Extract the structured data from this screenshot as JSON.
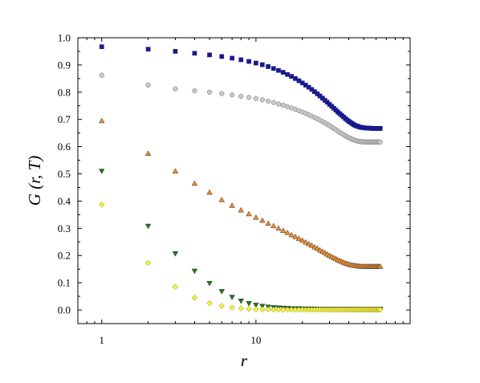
{
  "chart_data": {
    "type": "scatter",
    "title": "",
    "xlabel": "r",
    "ylabel": "G (r, T)",
    "x_scale": "log",
    "xlim": [
      0.7,
      100
    ],
    "ylim": [
      -0.05,
      1.0
    ],
    "grid": false,
    "legend": "none",
    "x_ticks": [
      {
        "value": 1,
        "label": "1"
      },
      {
        "value": 10,
        "label": "10"
      }
    ],
    "y_ticks": [
      {
        "value": 0.0,
        "label": "0.0"
      },
      {
        "value": 0.1,
        "label": "0.1"
      },
      {
        "value": 0.2,
        "label": "0.2"
      },
      {
        "value": 0.3,
        "label": "0.3"
      },
      {
        "value": 0.4,
        "label": "0.4"
      },
      {
        "value": 0.5,
        "label": "0.5"
      },
      {
        "value": 0.6,
        "label": "0.6"
      },
      {
        "value": 0.7,
        "label": "0.7"
      },
      {
        "value": 0.8,
        "label": "0.8"
      },
      {
        "value": 0.9,
        "label": "0.9"
      },
      {
        "value": 1.0,
        "label": "1.0"
      }
    ],
    "series": [
      {
        "marker": "square",
        "color": "#1a1a8c",
        "x": [
          1,
          2,
          3,
          4,
          5,
          6,
          7,
          8,
          9,
          10,
          11,
          12,
          13,
          14,
          15,
          16,
          17,
          18,
          19,
          20,
          21,
          22,
          23,
          24,
          25,
          26,
          27,
          28,
          29,
          30,
          31,
          32,
          33,
          34,
          35,
          36,
          37,
          38,
          39,
          40,
          41,
          42,
          43,
          44,
          45,
          46,
          47,
          48,
          49,
          50,
          51,
          52,
          53,
          54,
          55,
          56,
          57,
          58,
          59,
          60,
          61,
          62,
          63,
          64
        ],
        "values": [
          0.967,
          0.958,
          0.95,
          0.943,
          0.937,
          0.931,
          0.925,
          0.919,
          0.913,
          0.907,
          0.901,
          0.894,
          0.887,
          0.88,
          0.873,
          0.865,
          0.858,
          0.85,
          0.842,
          0.834,
          0.826,
          0.818,
          0.81,
          0.802,
          0.794,
          0.786,
          0.778,
          0.77,
          0.763,
          0.755,
          0.748,
          0.741,
          0.734,
          0.727,
          0.721,
          0.715,
          0.709,
          0.703,
          0.698,
          0.693,
          0.689,
          0.685,
          0.681,
          0.678,
          0.676,
          0.674,
          0.672,
          0.671,
          0.67,
          0.669,
          0.669,
          0.668,
          0.668,
          0.668,
          0.668,
          0.667,
          0.667,
          0.667,
          0.667,
          0.667,
          0.667,
          0.667,
          0.667,
          0.667
        ]
      },
      {
        "marker": "circle",
        "color": "#c8c8c8",
        "x": [
          1,
          2,
          3,
          4,
          5,
          6,
          7,
          8,
          9,
          10,
          11,
          12,
          13,
          14,
          15,
          16,
          17,
          18,
          19,
          20,
          21,
          22,
          23,
          24,
          25,
          26,
          27,
          28,
          29,
          30,
          31,
          32,
          33,
          34,
          35,
          36,
          37,
          38,
          39,
          40,
          41,
          42,
          43,
          44,
          45,
          46,
          47,
          48,
          49,
          50,
          51,
          52,
          53,
          54,
          55,
          56,
          57,
          58,
          59,
          60,
          61,
          62,
          63,
          64
        ],
        "values": [
          0.862,
          0.826,
          0.812,
          0.805,
          0.8,
          0.795,
          0.79,
          0.785,
          0.781,
          0.777,
          0.772,
          0.767,
          0.762,
          0.757,
          0.752,
          0.747,
          0.742,
          0.737,
          0.732,
          0.727,
          0.722,
          0.717,
          0.712,
          0.707,
          0.702,
          0.697,
          0.692,
          0.687,
          0.682,
          0.677,
          0.672,
          0.667,
          0.662,
          0.657,
          0.652,
          0.648,
          0.644,
          0.64,
          0.636,
          0.633,
          0.63,
          0.627,
          0.625,
          0.623,
          0.621,
          0.62,
          0.619,
          0.618,
          0.618,
          0.617,
          0.617,
          0.617,
          0.617,
          0.617,
          0.617,
          0.617,
          0.617,
          0.617,
          0.617,
          0.617,
          0.617,
          0.617,
          0.617,
          0.617
        ]
      },
      {
        "marker": "triangle-up",
        "color": "#f08c28",
        "x": [
          1,
          2,
          3,
          4,
          5,
          6,
          7,
          8,
          9,
          10,
          11,
          12,
          13,
          14,
          15,
          16,
          17,
          18,
          19,
          20,
          21,
          22,
          23,
          24,
          25,
          26,
          27,
          28,
          29,
          30,
          31,
          32,
          33,
          34,
          35,
          36,
          37,
          38,
          39,
          40,
          41,
          42,
          43,
          44,
          45,
          46,
          47,
          48,
          49,
          50,
          51,
          52,
          53,
          54,
          55,
          56,
          57,
          58,
          59,
          60,
          61,
          62,
          63,
          64
        ],
        "values": [
          0.695,
          0.575,
          0.51,
          0.465,
          0.432,
          0.405,
          0.384,
          0.367,
          0.353,
          0.34,
          0.329,
          0.318,
          0.309,
          0.3,
          0.292,
          0.284,
          0.276,
          0.269,
          0.262,
          0.256,
          0.249,
          0.243,
          0.237,
          0.231,
          0.226,
          0.22,
          0.215,
          0.21,
          0.205,
          0.2,
          0.196,
          0.192,
          0.188,
          0.184,
          0.181,
          0.178,
          0.175,
          0.172,
          0.17,
          0.168,
          0.166,
          0.165,
          0.164,
          0.163,
          0.162,
          0.161,
          0.161,
          0.16,
          0.16,
          0.16,
          0.16,
          0.16,
          0.16,
          0.16,
          0.16,
          0.16,
          0.16,
          0.16,
          0.16,
          0.16,
          0.16,
          0.16,
          0.16,
          0.16
        ]
      },
      {
        "marker": "triangle-down",
        "color": "#1e7a1e",
        "x": [
          1,
          2,
          3,
          4,
          5,
          6,
          7,
          8,
          9,
          10,
          11,
          12,
          13,
          14,
          15,
          16,
          17,
          18,
          19,
          20,
          21,
          22,
          23,
          24,
          25,
          26,
          27,
          28,
          29,
          30,
          31,
          32,
          33,
          34,
          35,
          36,
          37,
          38,
          39,
          40,
          41,
          42,
          43,
          44,
          45,
          46,
          47,
          48,
          49,
          50,
          51,
          52,
          53,
          54,
          55,
          56,
          57,
          58,
          59,
          60,
          61,
          62,
          63,
          64
        ],
        "values": [
          0.51,
          0.308,
          0.207,
          0.143,
          0.098,
          0.068,
          0.047,
          0.033,
          0.024,
          0.018,
          0.014,
          0.011,
          0.009,
          0.008,
          0.007,
          0.006,
          0.005,
          0.005,
          0.005,
          0.004,
          0.004,
          0.004,
          0.004,
          0.004,
          0.003,
          0.003,
          0.003,
          0.003,
          0.003,
          0.003,
          0.003,
          0.003,
          0.003,
          0.003,
          0.003,
          0.003,
          0.003,
          0.003,
          0.003,
          0.003,
          0.003,
          0.003,
          0.003,
          0.003,
          0.003,
          0.003,
          0.003,
          0.003,
          0.003,
          0.003,
          0.003,
          0.003,
          0.003,
          0.003,
          0.003,
          0.003,
          0.003,
          0.003,
          0.003,
          0.003,
          0.003,
          0.003,
          0.003,
          0.003
        ]
      },
      {
        "marker": "diamond",
        "color": "#f5f03c",
        "x": [
          1,
          2,
          3,
          4,
          5,
          6,
          7,
          8,
          9,
          10,
          11,
          12,
          13,
          14,
          15,
          16,
          17,
          18,
          19,
          20,
          21,
          22,
          23,
          24,
          25,
          26,
          27,
          28,
          29,
          30,
          31,
          32,
          33,
          34,
          35,
          36,
          37,
          38,
          39,
          40,
          41,
          42,
          43,
          44,
          45,
          46,
          47,
          48,
          49,
          50,
          51,
          52,
          53,
          54,
          55,
          56,
          57,
          58,
          59,
          60,
          61,
          62,
          63,
          64
        ],
        "values": [
          0.387,
          0.173,
          0.085,
          0.045,
          0.025,
          0.015,
          0.009,
          0.006,
          0.004,
          0.003,
          0.002,
          0.002,
          0.001,
          0.001,
          0.001,
          0.001,
          0.001,
          0.001,
          0.001,
          0.001,
          0.001,
          0.001,
          0.001,
          0.001,
          0.001,
          0.001,
          0.001,
          0.001,
          0.001,
          0.001,
          0.001,
          0.001,
          0.001,
          0.001,
          0.001,
          0.001,
          0.001,
          0.001,
          0.001,
          0.001,
          0.001,
          0.001,
          0.001,
          0.001,
          0.001,
          0.001,
          0.001,
          0.001,
          0.001,
          0.001,
          0.001,
          0.001,
          0.001,
          0.001,
          0.001,
          0.001,
          0.001,
          0.001,
          0.001,
          0.001,
          0.001,
          0.001,
          0.001,
          0.001
        ]
      }
    ]
  }
}
